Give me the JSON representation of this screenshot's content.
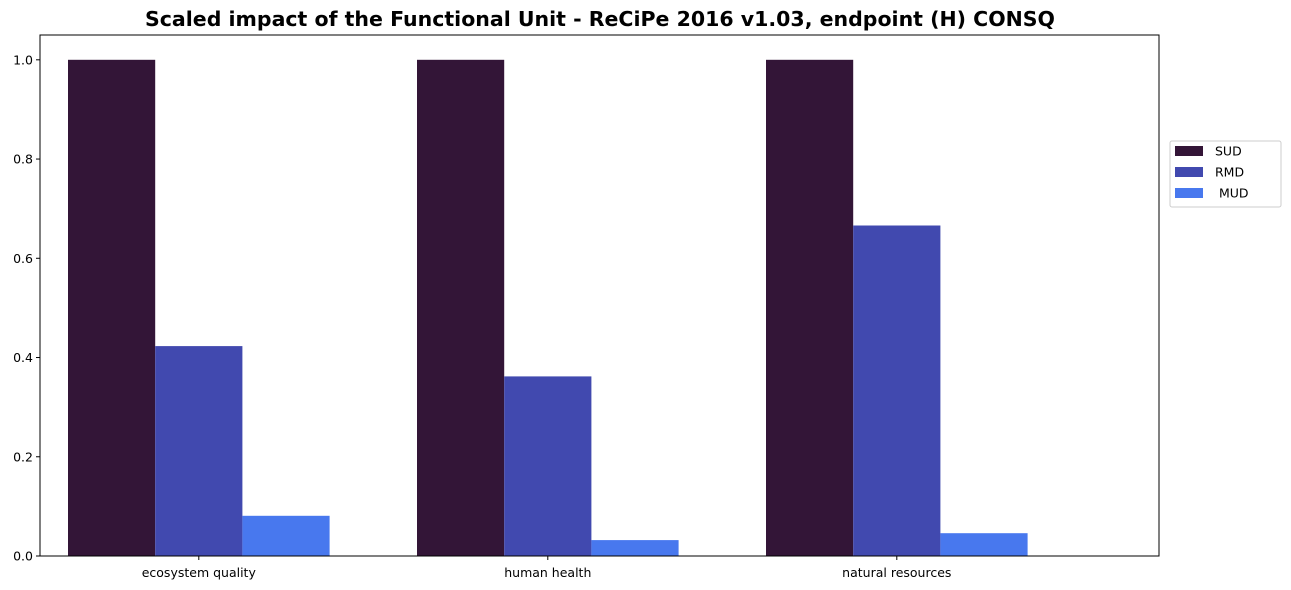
{
  "chart_data": {
    "type": "bar",
    "title": "Scaled impact of the Functional Unit - ReCiPe 2016 v1.03, endpoint (H) CONSQ",
    "xlabel": "",
    "ylabel": "",
    "categories": [
      "ecosystem quality",
      "human health",
      "natural resources"
    ],
    "series": [
      {
        "name": "SUD",
        "color": "#331537",
        "values": [
          1.0,
          1.0,
          1.0
        ]
      },
      {
        "name": "RMD",
        "color": "#4149AF",
        "values": [
          0.423,
          0.362,
          0.666
        ]
      },
      {
        "name": " MUD",
        "color": "#4878EE",
        "values": [
          0.081,
          0.032,
          0.046
        ]
      }
    ],
    "ylim": [
      0,
      1.05
    ],
    "yticks": [
      "0.0",
      "0.2",
      "0.4",
      "0.6",
      "0.8",
      "1.0"
    ],
    "grid": false,
    "legend_position": "outside-right"
  }
}
